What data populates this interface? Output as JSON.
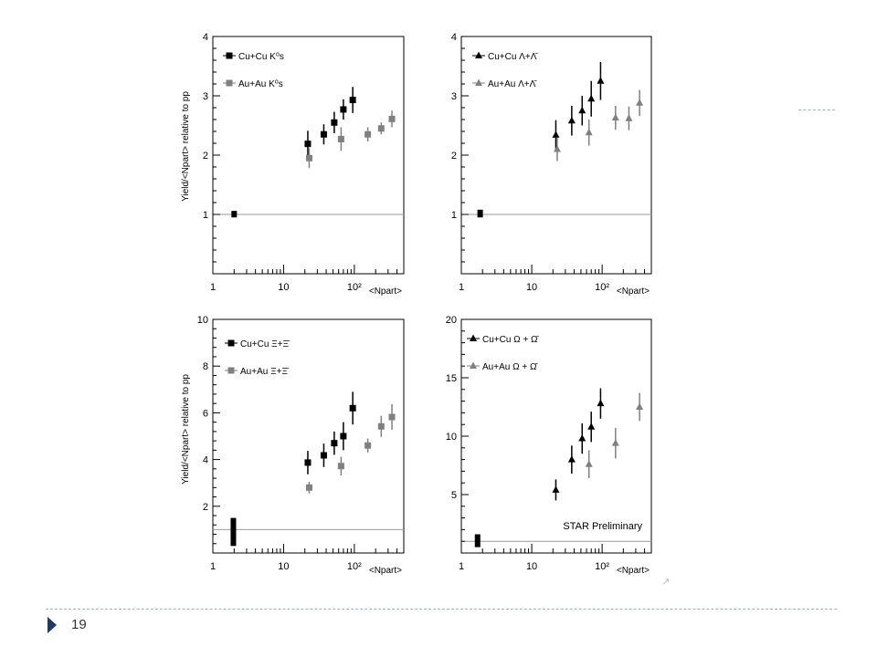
{
  "slide": {
    "page_number": "19",
    "colors": {
      "accent": "#1f3864",
      "divider": "#9bb0c4",
      "series_cu": "#000000",
      "series_au": "#808080"
    }
  },
  "chart_data": [
    {
      "type": "scatter",
      "panel": "top-left",
      "xscale": "log",
      "xlim": [
        1,
        500
      ],
      "ylim": [
        0,
        4
      ],
      "yticks": [
        1,
        2,
        3,
        4
      ],
      "xticks": [
        {
          "v": 1,
          "label": "1"
        },
        {
          "v": 10,
          "label": "10"
        },
        {
          "v": 100,
          "label": "10²"
        }
      ],
      "ylabel": "Yield/<Npart> relative to pp",
      "xlabel": "<Npart>",
      "reference_line": 1,
      "normalization_box": {
        "x": 2.0,
        "low": 0.95,
        "high": 1.06
      },
      "annotation": "",
      "series": [
        {
          "name": "Cu+Cu K⁰s",
          "marker": "square",
          "color": "#000000",
          "points": [
            [
              22,
              2.19,
              0.22
            ],
            [
              37,
              2.35,
              0.17
            ],
            [
              52,
              2.55,
              0.18
            ],
            [
              70,
              2.77,
              0.17
            ],
            [
              95,
              2.93,
              0.22
            ]
          ]
        },
        {
          "name": "Au+Au K⁰s",
          "marker": "square",
          "color": "#808080",
          "points": [
            [
              23,
              1.95,
              0.17
            ],
            [
              65,
              2.27,
              0.2
            ],
            [
              155,
              2.35,
              0.12
            ],
            [
              240,
              2.45,
              0.1
            ],
            [
              340,
              2.61,
              0.14
            ]
          ]
        }
      ]
    },
    {
      "type": "scatter",
      "panel": "top-right",
      "xscale": "log",
      "xlim": [
        1,
        500
      ],
      "ylim": [
        0,
        4
      ],
      "yticks": [
        1,
        2,
        3,
        4
      ],
      "xticks": [
        {
          "v": 1,
          "label": "1"
        },
        {
          "v": 10,
          "label": "10"
        },
        {
          "v": 100,
          "label": "10²"
        }
      ],
      "ylabel": "",
      "xlabel": "<Npart>",
      "reference_line": 1,
      "normalization_box": {
        "x": 1.85,
        "low": 0.95,
        "high": 1.08
      },
      "annotation": "",
      "series": [
        {
          "name": "Cu+Cu Λ+Λ̄",
          "marker": "triangle",
          "color": "#000000",
          "points": [
            [
              22,
              2.34,
              0.25
            ],
            [
              37,
              2.58,
              0.25
            ],
            [
              52,
              2.75,
              0.25
            ],
            [
              70,
              2.95,
              0.3
            ],
            [
              95,
              3.25,
              0.32
            ]
          ]
        },
        {
          "name": "Au+Au Λ+Λ̄",
          "marker": "triangle",
          "color": "#808080",
          "points": [
            [
              23,
              2.1,
              0.2
            ],
            [
              65,
              2.38,
              0.22
            ],
            [
              155,
              2.63,
              0.2
            ],
            [
              240,
              2.62,
              0.2
            ],
            [
              340,
              2.88,
              0.22
            ]
          ]
        }
      ]
    },
    {
      "type": "scatter",
      "panel": "bottom-left",
      "xscale": "log",
      "xlim": [
        1,
        500
      ],
      "ylim": [
        0,
        10
      ],
      "yticks": [
        2,
        4,
        6,
        8,
        10
      ],
      "xticks": [
        {
          "v": 1,
          "label": "1"
        },
        {
          "v": 10,
          "label": "10"
        },
        {
          "v": 100,
          "label": "10²"
        }
      ],
      "ylabel": "Yield/<Npart> relative to pp",
      "xlabel": "<Npart>",
      "reference_line": 1,
      "normalization_box": {
        "x": 1.95,
        "low": 0.3,
        "high": 1.5
      },
      "annotation": "",
      "series": [
        {
          "name": "Cu+Cu Ξ+Ξ̄",
          "marker": "square",
          "color": "#000000",
          "points": [
            [
              22,
              3.87,
              0.5
            ],
            [
              37,
              4.18,
              0.5
            ],
            [
              52,
              4.7,
              0.5
            ],
            [
              70,
              5.0,
              0.6
            ],
            [
              95,
              6.2,
              0.7
            ]
          ]
        },
        {
          "name": "Au+Au Ξ+Ξ̄",
          "marker": "square",
          "color": "#808080",
          "points": [
            [
              23,
              2.8,
              0.25
            ],
            [
              65,
              3.72,
              0.4
            ],
            [
              155,
              4.6,
              0.3
            ],
            [
              240,
              5.42,
              0.45
            ],
            [
              340,
              5.82,
              0.55
            ]
          ]
        }
      ]
    },
    {
      "type": "scatter",
      "panel": "bottom-right",
      "xscale": "log",
      "xlim": [
        1,
        500
      ],
      "ylim": [
        0,
        20
      ],
      "yticks": [
        5,
        10,
        15,
        20
      ],
      "xticks": [
        {
          "v": 1,
          "label": "1"
        },
        {
          "v": 10,
          "label": "10"
        },
        {
          "v": 100,
          "label": "10²"
        }
      ],
      "ylabel": "",
      "xlabel": "<Npart>",
      "reference_line": 1,
      "normalization_box": {
        "x": 1.7,
        "low": 0.5,
        "high": 1.6
      },
      "annotation": "STAR Preliminary",
      "series": [
        {
          "name": "Cu+Cu Ω + Ω̄",
          "marker": "triangle",
          "color": "#000000",
          "points": [
            [
              22,
              5.4,
              0.9
            ],
            [
              37,
              8.0,
              1.2
            ],
            [
              52,
              9.8,
              1.3
            ],
            [
              70,
              10.8,
              1.3
            ],
            [
              95,
              12.8,
              1.3
            ]
          ]
        },
        {
          "name": "Au+Au Ω + Ω̄",
          "marker": "triangle",
          "color": "#808080",
          "points": [
            [
              65,
              7.6,
              1.2
            ],
            [
              155,
              9.4,
              1.3
            ],
            [
              340,
              12.5,
              1.2
            ]
          ]
        }
      ]
    }
  ]
}
